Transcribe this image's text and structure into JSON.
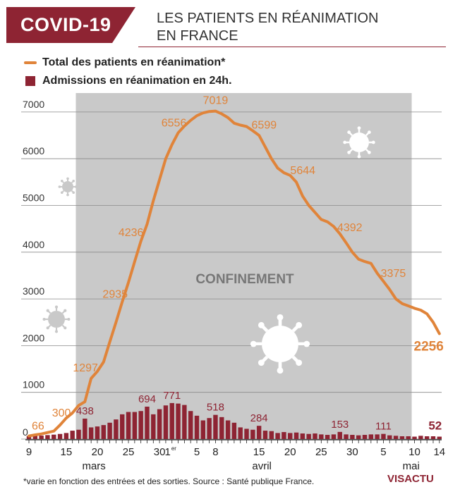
{
  "header": {
    "badge": "COVID-19",
    "title_line1": "LES PATIENTS EN RÉANIMATION",
    "title_line2": "EN FRANCE"
  },
  "legend": {
    "line_label": "Total des patients en réanimation*",
    "bar_label": "Admissions en réanimation en 24h."
  },
  "chart_data": {
    "type": "bar+line",
    "x_start_date": "2020-03-09",
    "x": [
      "9 mars",
      "10 mars",
      "11 mars",
      "12 mars",
      "13 mars",
      "14 mars",
      "15 mars",
      "16 mars",
      "17 mars",
      "18 mars",
      "19 mars",
      "20 mars",
      "21 mars",
      "22 mars",
      "23 mars",
      "24 mars",
      "25 mars",
      "26 mars",
      "27 mars",
      "28 mars",
      "29 mars",
      "30 mars",
      "31 mars",
      "1 avril",
      "2 avril",
      "3 avril",
      "4 avril",
      "5 avril",
      "6 avril",
      "7 avril",
      "8 avril",
      "9 avril",
      "10 avril",
      "11 avril",
      "12 avril",
      "13 avril",
      "14 avril",
      "15 avril",
      "16 avril",
      "17 avril",
      "18 avril",
      "19 avril",
      "20 avril",
      "21 avril",
      "22 avril",
      "23 avril",
      "24 avril",
      "25 avril",
      "26 avril",
      "27 avril",
      "28 avril",
      "29 avril",
      "30 avril",
      "1 mai",
      "2 mai",
      "3 mai",
      "4 mai",
      "5 mai",
      "6 mai",
      "7 mai",
      "8 mai",
      "9 mai",
      "10 mai",
      "11 mai",
      "12 mai",
      "13 mai",
      "14 mai"
    ],
    "series": [
      {
        "name": "Total des patients en réanimation*",
        "color": "#e0843a",
        "values": [
          66,
          90,
          110,
          140,
          170,
          300,
          450,
          560,
          720,
          800,
          1297,
          1450,
          1650,
          2080,
          2500,
          2935,
          3350,
          3800,
          4236,
          4600,
          5100,
          5550,
          6000,
          6300,
          6556,
          6700,
          6820,
          6920,
          6980,
          7010,
          7019,
          6960,
          6880,
          6760,
          6720,
          6690,
          6599,
          6500,
          6250,
          6000,
          5800,
          5700,
          5644,
          5500,
          5200,
          5000,
          4850,
          4700,
          4650,
          4550,
          4392,
          4200,
          4000,
          3850,
          3800,
          3760,
          3550,
          3375,
          3200,
          3000,
          2900,
          2850,
          2800,
          2760,
          2680,
          2500,
          2256
        ]
      },
      {
        "name": "Admissions en réanimation en 24h.",
        "color": "#8e2433",
        "values": [
          66,
          70,
          75,
          85,
          95,
          110,
          130,
          180,
          200,
          438,
          250,
          270,
          300,
          350,
          420,
          530,
          580,
          580,
          600,
          694,
          530,
          640,
          720,
          771,
          760,
          730,
          600,
          500,
          400,
          450,
          518,
          470,
          400,
          350,
          250,
          220,
          200,
          284,
          180,
          170,
          130,
          150,
          130,
          140,
          120,
          110,
          120,
          100,
          90,
          100,
          153,
          100,
          90,
          80,
          90,
          100,
          100,
          111,
          80,
          70,
          60,
          60,
          52,
          70,
          60,
          60,
          52
        ]
      }
    ],
    "yticks": [
      0,
      1000,
      2000,
      3000,
      4000,
      5000,
      6000,
      7000
    ],
    "ylim": [
      0,
      7300
    ],
    "xtick_labels": [
      "9",
      "15",
      "20",
      "25",
      "30",
      "1er",
      "5",
      "8",
      "15",
      "20",
      "25",
      "30",
      "5",
      "10",
      "14"
    ],
    "xtick_days": [
      0,
      6,
      11,
      16,
      21,
      23,
      27,
      30,
      37,
      42,
      47,
      52,
      57,
      62,
      66
    ],
    "month_labels": [
      {
        "label": "mars",
        "day": 10
      },
      {
        "label": "avril",
        "day": 37
      },
      {
        "label": "mai",
        "day": 61
      }
    ],
    "line_annotations": [
      {
        "text": "66",
        "day": 0
      },
      {
        "text": "300",
        "day": 5
      },
      {
        "text": "1297",
        "day": 10
      },
      {
        "text": "2935",
        "day": 15
      },
      {
        "text": "4236",
        "day": 18
      },
      {
        "text": "6556",
        "day": 24
      },
      {
        "text": "7019",
        "day": 30
      },
      {
        "text": "6599",
        "day": 36
      },
      {
        "text": "5644",
        "day": 42
      },
      {
        "text": "4392",
        "day": 50
      },
      {
        "text": "3375",
        "day": 57
      },
      {
        "text": "2256",
        "day": 66
      }
    ],
    "bar_annotations": [
      {
        "text": "438",
        "day": 9
      },
      {
        "text": "694",
        "day": 19
      },
      {
        "text": "771",
        "day": 23
      },
      {
        "text": "518",
        "day": 30
      },
      {
        "text": "284",
        "day": 37
      },
      {
        "text": "153",
        "day": 50
      },
      {
        "text": "111",
        "day": 57
      },
      {
        "text": "52",
        "day": 66
      }
    ],
    "shaded_period": {
      "label": "CONFINEMENT",
      "start": "2020-03-17",
      "end": "2020-05-10"
    },
    "grid": true
  },
  "footnote": "*varie en fonction des entrées et des sorties. Source : Santé publique France.",
  "logo": {
    "part1": "VI",
    "part2": "S",
    "part3": "ACTU"
  }
}
